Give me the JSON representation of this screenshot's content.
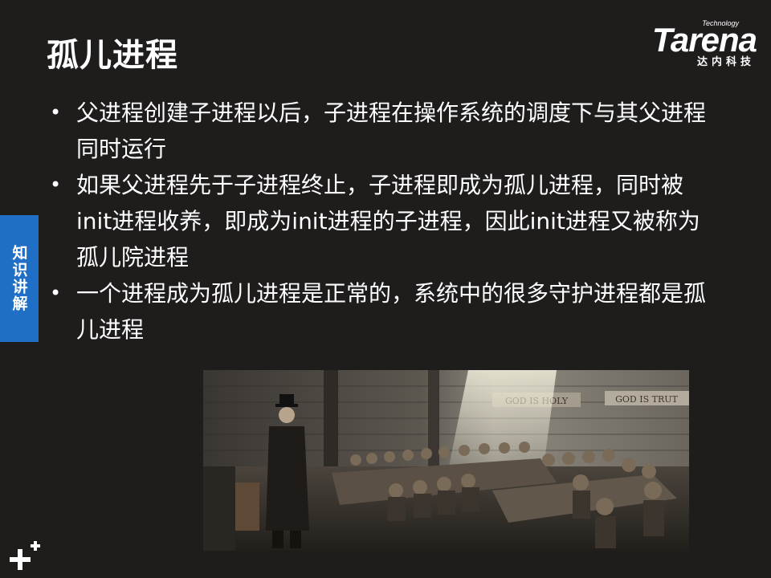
{
  "slide": {
    "title": "孤儿进程",
    "logo": {
      "small": "Technology",
      "word": "Tarena",
      "cn": "达内科技"
    },
    "side_tab": "知识讲解",
    "bullets": [
      "父进程创建子进程以后，子进程在操作系统的调度下与其父进程同时运行",
      "如果父进程先于子进程终止，子进程即成为孤儿进程，同时被init进程收养，即成为init进程的子进程，因此init进程又被称为孤儿院进程",
      "一个进程成为孤儿进程是正常的，系统中的很多守护进程都是孤儿进程"
    ],
    "photo": {
      "wall_text_left": "GOD IS HOLY",
      "wall_text_right": "GOD IS TRUT"
    }
  },
  "colors": {
    "background": "#1f1c1c",
    "accent": "#1f6fc6",
    "text": "#ffffff"
  }
}
